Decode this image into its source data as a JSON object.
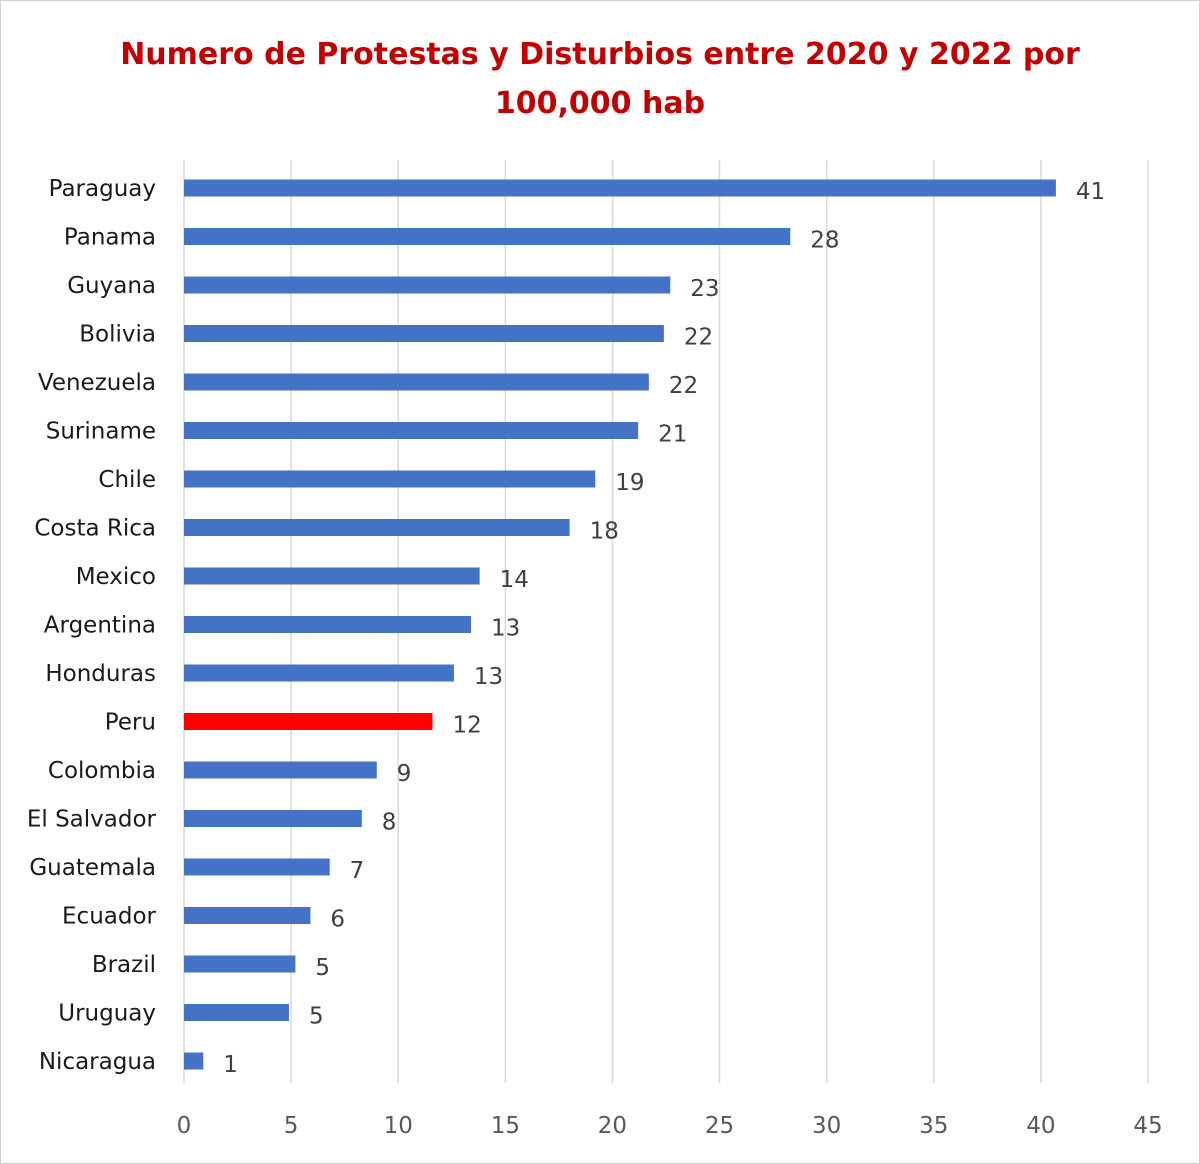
{
  "chart_data": {
    "type": "bar",
    "orientation": "horizontal",
    "title_lines": [
      "Numero de Protestas y Disturbios entre 2020 y 2022 por",
      "100,000 hab"
    ],
    "categories": [
      "Paraguay",
      "Panama",
      "Guyana",
      "Bolivia",
      "Venezuela",
      "Suriname",
      "Chile",
      "Costa Rica",
      "Mexico",
      "Argentina",
      "Honduras",
      "Peru",
      "Colombia",
      "El Salvador",
      "Guatemala",
      "Ecuador",
      "Brazil",
      "Uruguay",
      "Nicaragua"
    ],
    "values": [
      40.7,
      28.3,
      22.7,
      22.4,
      21.7,
      21.2,
      19.2,
      18.0,
      13.8,
      13.4,
      12.6,
      11.6,
      9.0,
      8.3,
      6.8,
      5.9,
      5.2,
      4.9,
      0.9
    ],
    "data_labels": [
      "41",
      "28",
      "23",
      "22",
      "22",
      "21",
      "19",
      "18",
      "14",
      "13",
      "13",
      "12",
      "9",
      "8",
      "7",
      "6",
      "5",
      "5",
      "1"
    ],
    "highlight": "Peru",
    "xlim": [
      0,
      45
    ],
    "xticks": [
      0,
      5,
      10,
      15,
      20,
      25,
      30,
      35,
      40,
      45
    ],
    "grid": "vertical",
    "colors": {
      "bar": "#4472c4",
      "highlight": "#ff0000",
      "title": "#c00000",
      "grid": "#d9d9d9"
    }
  }
}
